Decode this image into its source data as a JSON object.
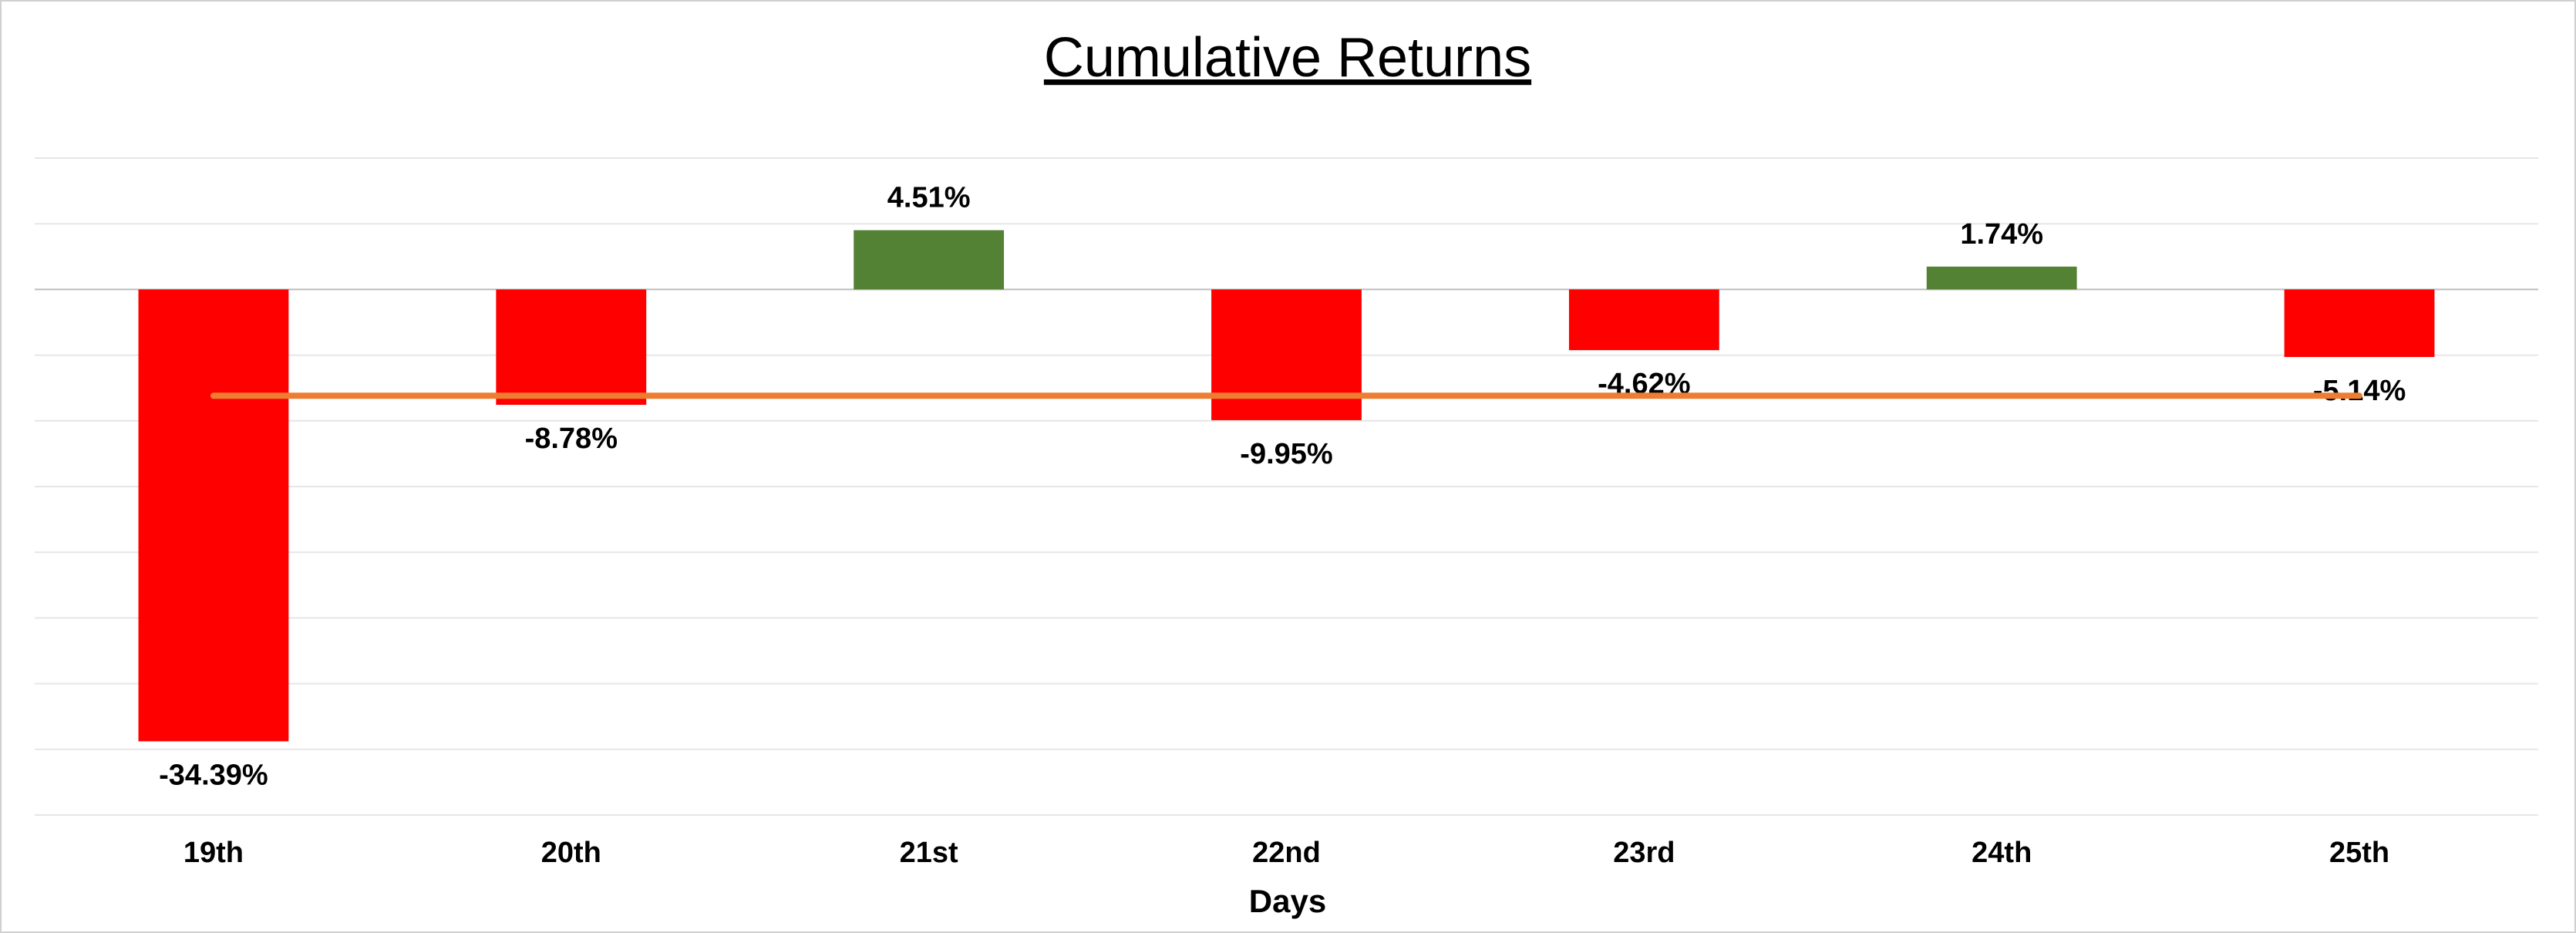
{
  "chart_data": {
    "type": "bar",
    "title": "Cumulative Returns",
    "x_label": "Days",
    "categories": [
      "19th",
      "20th",
      "21st",
      "22nd",
      "23rd",
      "24th",
      "25th"
    ],
    "values": [
      -34.39,
      -8.78,
      4.51,
      -9.95,
      -4.62,
      1.74,
      -5.14
    ],
    "value_labels": [
      "-34.39%",
      "-8.78%",
      "4.51%",
      "-9.95%",
      "-4.62%",
      "1.74%",
      "-5.14%"
    ],
    "colors": [
      "#ff0000",
      "#ff0000",
      "#548235",
      "#ff0000",
      "#ff0000",
      "#548235",
      "#ff0000"
    ],
    "line": {
      "type": "line",
      "color": "#ed7d31",
      "values": [
        -8.09,
        -8.09,
        -8.09,
        -8.09,
        -8.09,
        -8.09,
        -8.09
      ]
    },
    "ylim": [
      -40,
      10
    ],
    "yticks": [
      -40,
      -35,
      -30,
      -25,
      -20,
      -15,
      -10,
      -5,
      0,
      5,
      10
    ],
    "grid": true
  }
}
